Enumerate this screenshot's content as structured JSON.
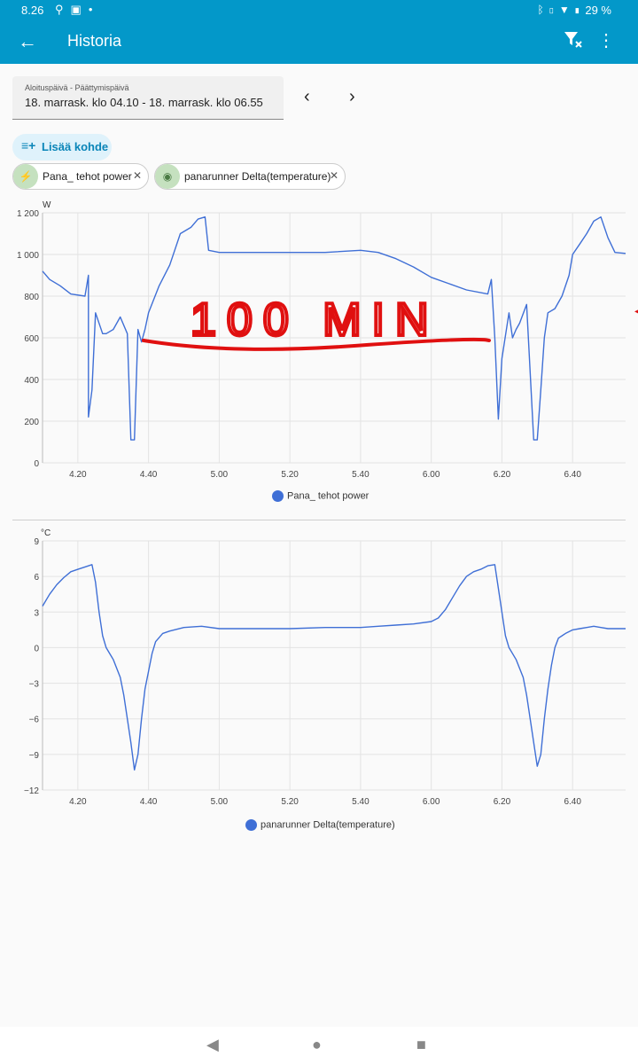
{
  "status": {
    "time": "8.26",
    "battery": "29 %"
  },
  "appbar": {
    "title": "Historia"
  },
  "date_range": {
    "label": "Aloituspäivä - Päättymispäivä",
    "value": "18. marrask. klo 04.10 - 18. marrask. klo 06.55"
  },
  "add_button": {
    "label": "Lisää kohde"
  },
  "chips": [
    {
      "label": "Pana_ tehot power",
      "icon": "lightning-icon"
    },
    {
      "label": "panarunner Delta(temperature)",
      "icon": "eye-icon"
    }
  ],
  "annotation": {
    "text": "100 MIN",
    "color": "#e01010"
  },
  "colors": {
    "line": "#3f6fd6",
    "accent": "#0398c9"
  },
  "chart_data": [
    {
      "type": "line",
      "ylabel": "W",
      "ylim": [
        0,
        1200
      ],
      "yticks": [
        0,
        200,
        400,
        600,
        800,
        1000,
        1200
      ],
      "ytick_labels": [
        "0",
        "200",
        "400",
        "600",
        "800",
        "1 000",
        "1 200"
      ],
      "xlim": [
        "04.10",
        "06.55"
      ],
      "xticks": [
        "4.20",
        "4.40",
        "5.00",
        "5.20",
        "5.40",
        "6.00",
        "6.20",
        "6.40"
      ],
      "grid": true,
      "legend": "bottom-center",
      "series": [
        {
          "name": "Pana_ tehot power",
          "x": [
            "04.10",
            "04.12",
            "04.15",
            "04.18",
            "04.22",
            "04.23",
            "04.23",
            "04.24",
            "04.25",
            "04.27",
            "04.28",
            "04.30",
            "04.32",
            "04.34",
            "04.35",
            "04.36",
            "04.37",
            "04.38",
            "04.39",
            "04.40",
            "04.43",
            "04.46",
            "04.49",
            "04.52",
            "04.54",
            "04.56",
            "04.57",
            "05.00",
            "05.10",
            "05.20",
            "05.30",
            "05.40",
            "05.45",
            "05.50",
            "05.55",
            "06.00",
            "06.05",
            "06.10",
            "06.16",
            "06.17",
            "06.18",
            "06.19",
            "06.20",
            "06.22",
            "06.23",
            "06.24",
            "06.25",
            "06.27",
            "06.29",
            "06.30",
            "06.31",
            "06.32",
            "06.33",
            "06.35",
            "06.37",
            "06.39",
            "06.40",
            "06.42",
            "06.44",
            "06.46",
            "06.48",
            "06.50",
            "06.52",
            "06.55"
          ],
          "y": [
            920,
            880,
            850,
            810,
            800,
            900,
            220,
            350,
            720,
            620,
            620,
            640,
            700,
            620,
            110,
            110,
            640,
            580,
            640,
            720,
            850,
            950,
            1100,
            1130,
            1170,
            1180,
            1020,
            1010,
            1010,
            1010,
            1010,
            1020,
            1010,
            980,
            940,
            890,
            860,
            830,
            810,
            880,
            600,
            210,
            500,
            720,
            600,
            640,
            670,
            760,
            110,
            110,
            350,
            600,
            720,
            740,
            800,
            900,
            1000,
            1050,
            1100,
            1160,
            1180,
            1080,
            1010,
            1005
          ]
        }
      ]
    },
    {
      "type": "line",
      "ylabel": "°C",
      "ylim": [
        -12,
        9
      ],
      "yticks": [
        -12,
        -9,
        -6,
        -3,
        0,
        3,
        6,
        9
      ],
      "ytick_labels": [
        "−12",
        "−9",
        "−6",
        "−3",
        "0",
        "3",
        "6",
        "9"
      ],
      "xlim": [
        "04.10",
        "06.55"
      ],
      "xticks": [
        "4.20",
        "4.40",
        "5.00",
        "5.20",
        "5.40",
        "6.00",
        "6.20",
        "6.40"
      ],
      "grid": true,
      "legend": "bottom-center",
      "series": [
        {
          "name": "panarunner Delta(temperature)",
          "x": [
            "04.10",
            "04.12",
            "04.14",
            "04.16",
            "04.18",
            "04.20",
            "04.22",
            "04.24",
            "04.25",
            "04.26",
            "04.27",
            "04.28",
            "04.29",
            "04.30",
            "04.32",
            "04.33",
            "04.34",
            "04.35",
            "04.36",
            "04.37",
            "04.38",
            "04.39",
            "04.40",
            "04.41",
            "04.42",
            "04.44",
            "04.46",
            "04.50",
            "04.55",
            "05.00",
            "05.10",
            "05.20",
            "05.30",
            "05.40",
            "05.45",
            "05.50",
            "05.55",
            "06.00",
            "06.02",
            "06.04",
            "06.06",
            "06.08",
            "06.10",
            "06.12",
            "06.14",
            "06.16",
            "06.18",
            "06.19",
            "06.20",
            "06.21",
            "06.22",
            "06.24",
            "06.26",
            "06.27",
            "06.28",
            "06.29",
            "06.30",
            "06.31",
            "06.32",
            "06.33",
            "06.34",
            "06.35",
            "06.36",
            "06.38",
            "06.40",
            "06.42",
            "06.44",
            "06.46",
            "06.48",
            "06.50",
            "06.52",
            "06.55"
          ],
          "y": [
            3.5,
            4.5,
            5.3,
            5.9,
            6.4,
            6.6,
            6.8,
            7.0,
            5.5,
            3.0,
            1.0,
            0.0,
            -0.5,
            -1.0,
            -2.5,
            -4.0,
            -6.0,
            -8.0,
            -10.3,
            -9.0,
            -6.0,
            -3.5,
            -2.0,
            -0.5,
            0.5,
            1.2,
            1.4,
            1.7,
            1.8,
            1.6,
            1.6,
            1.6,
            1.7,
            1.7,
            1.8,
            1.9,
            2.0,
            2.2,
            2.5,
            3.2,
            4.2,
            5.2,
            6.0,
            6.4,
            6.6,
            6.9,
            7.0,
            5.0,
            3.0,
            1.0,
            0.0,
            -1.0,
            -2.5,
            -4.0,
            -6.0,
            -8.0,
            -10.0,
            -9.0,
            -6.0,
            -3.5,
            -1.5,
            0.0,
            0.8,
            1.2,
            1.5,
            1.6,
            1.7,
            1.8,
            1.7,
            1.6,
            1.6,
            1.6
          ]
        }
      ]
    }
  ]
}
